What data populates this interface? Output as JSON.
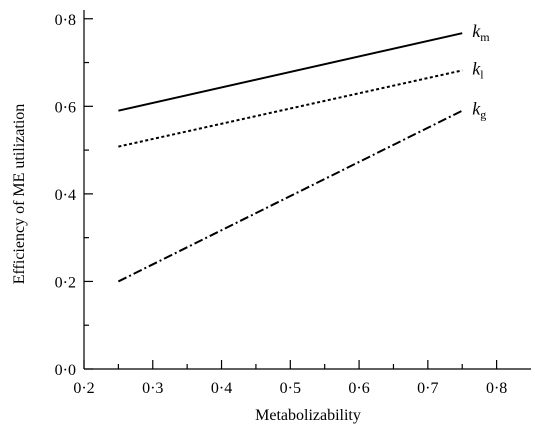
{
  "chart_data": {
    "type": "line",
    "title": "",
    "xlabel": "Metabolizability",
    "ylabel": "Efficiency of ME utilization",
    "xlim": [
      0.2,
      0.85
    ],
    "ylim": [
      0.0,
      0.82
    ],
    "x_ticks": [
      0.2,
      0.3,
      0.4,
      0.5,
      0.6,
      0.7,
      0.8
    ],
    "x_tick_labels": [
      "0·2",
      "0·3",
      "0·4",
      "0·5",
      "0·6",
      "0·7",
      "0·8"
    ],
    "y_ticks": [
      0.0,
      0.2,
      0.4,
      0.6,
      0.8
    ],
    "y_tick_labels": [
      "0·0",
      "0·2",
      "0·4",
      "0·6",
      "0·8"
    ],
    "grid": false,
    "legend": "inline labels at right end of lines",
    "series": [
      {
        "name": "k",
        "subscript": "m",
        "style": "solid",
        "x": [
          0.25,
          0.75
        ],
        "y": [
          0.59,
          0.767
        ]
      },
      {
        "name": "k",
        "subscript": "l",
        "style": "dotted",
        "x": [
          0.25,
          0.75
        ],
        "y": [
          0.508,
          0.682
        ]
      },
      {
        "name": "k",
        "subscript": "g",
        "style": "dash-dot",
        "x": [
          0.25,
          0.75
        ],
        "y": [
          0.2,
          0.59
        ]
      }
    ]
  }
}
